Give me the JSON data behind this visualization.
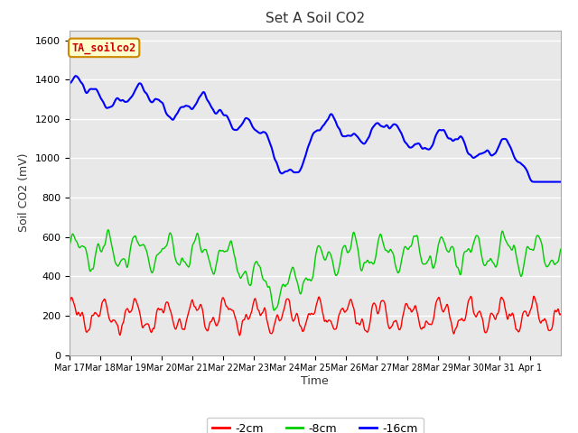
{
  "title": "Set A Soil CO2",
  "ylabel": "Soil CO2 (mV)",
  "xlabel": "Time",
  "ylim": [
    0,
    1650
  ],
  "bg_color": "#e8e8e8",
  "fig_bg": "#ffffff",
  "annotation_label": "TA_soilco2",
  "annotation_bg": "#ffffcc",
  "annotation_edge": "#cc8800",
  "annotation_text_color": "#cc0000",
  "line_red": {
    "label": "-2cm",
    "color": "red",
    "linewidth": 1.0
  },
  "line_green": {
    "label": "-8cm",
    "color": "#00cc00",
    "linewidth": 1.0
  },
  "line_blue": {
    "label": "-16cm",
    "color": "blue",
    "linewidth": 1.5
  },
  "xtick_labels": [
    "Mar 17",
    "Mar 18",
    "Mar 19",
    "Mar 20",
    "Mar 21",
    "Mar 22",
    "Mar 23",
    "Mar 24",
    "Mar 25",
    "Mar 26",
    "Mar 27",
    "Mar 28",
    "Mar 29",
    "Mar 30",
    "Mar 31",
    "Apr 1"
  ],
  "ytick_values": [
    0,
    200,
    400,
    600,
    800,
    1000,
    1200,
    1400,
    1600
  ],
  "ytick_labels": [
    "0",
    "200",
    "400",
    "600",
    "800",
    "1000",
    "1200",
    "1400",
    "1600"
  ]
}
